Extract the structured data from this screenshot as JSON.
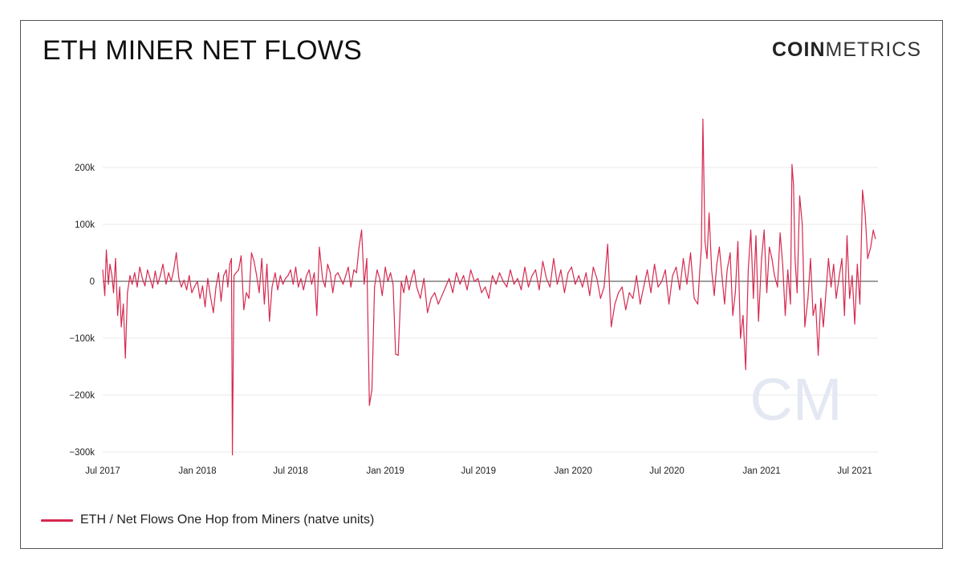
{
  "header": {
    "title": "ETH MINER NET FLOWS",
    "brand_bold": "COIN",
    "brand_light": "METRICS"
  },
  "watermark": "CM",
  "legend": {
    "label": "ETH / Net Flows One Hop from Miners (natve units)"
  },
  "colors": {
    "series": "#d6294f",
    "grid": "#e8e8e8",
    "zero": "#666666",
    "watermark": "#e3e8f2"
  },
  "chart_data": {
    "type": "line",
    "title": "ETH MINER NET FLOWS",
    "xlabel": "",
    "ylabel": "",
    "grid": true,
    "legend_position": "bottom-left",
    "xlim": [
      "2017-07-01",
      "2021-08-15"
    ],
    "ylim": [
      -300000,
      200000
    ],
    "y_ticks": [
      {
        "value": 200000,
        "label": "200k"
      },
      {
        "value": 100000,
        "label": "100k"
      },
      {
        "value": 0,
        "label": "0"
      },
      {
        "value": -100000,
        "label": "−100k"
      },
      {
        "value": -200000,
        "label": "−200k"
      },
      {
        "value": -300000,
        "label": "−300k"
      }
    ],
    "x_ticks": [
      {
        "value": "2017-07-01",
        "label": "Jul 2017"
      },
      {
        "value": "2018-01-01",
        "label": "Jan 2018"
      },
      {
        "value": "2018-07-01",
        "label": "Jul 2018"
      },
      {
        "value": "2019-01-01",
        "label": "Jan 2019"
      },
      {
        "value": "2019-07-01",
        "label": "Jul 2019"
      },
      {
        "value": "2020-01-01",
        "label": "Jan 2020"
      },
      {
        "value": "2020-07-01",
        "label": "Jul 2020"
      },
      {
        "value": "2021-01-01",
        "label": "Jan 2021"
      },
      {
        "value": "2021-07-01",
        "label": "Jul 2021"
      }
    ],
    "series": [
      {
        "name": "ETH / Net Flows One Hop from Miners (natve units)",
        "x": [
          "2017-07-01",
          "2017-07-05",
          "2017-07-08",
          "2017-07-12",
          "2017-07-15",
          "2017-07-19",
          "2017-07-22",
          "2017-07-26",
          "2017-07-30",
          "2017-08-03",
          "2017-08-06",
          "2017-08-10",
          "2017-08-14",
          "2017-08-18",
          "2017-08-23",
          "2017-08-27",
          "2017-09-01",
          "2017-09-06",
          "2017-09-11",
          "2017-09-16",
          "2017-09-21",
          "2017-09-26",
          "2017-10-01",
          "2017-10-06",
          "2017-10-11",
          "2017-10-16",
          "2017-10-21",
          "2017-10-26",
          "2017-11-01",
          "2017-11-06",
          "2017-11-11",
          "2017-11-16",
          "2017-11-21",
          "2017-11-26",
          "2017-12-01",
          "2017-12-06",
          "2017-12-11",
          "2017-12-16",
          "2017-12-21",
          "2017-12-26",
          "2018-01-01",
          "2018-01-06",
          "2018-01-11",
          "2018-01-16",
          "2018-01-21",
          "2018-01-26",
          "2018-02-01",
          "2018-02-06",
          "2018-02-11",
          "2018-02-16",
          "2018-02-21",
          "2018-02-26",
          "2018-03-01",
          "2018-03-05",
          "2018-03-08",
          "2018-03-10",
          "2018-03-13",
          "2018-03-17",
          "2018-03-22",
          "2018-03-27",
          "2018-04-01",
          "2018-04-06",
          "2018-04-11",
          "2018-04-16",
          "2018-04-21",
          "2018-04-26",
          "2018-05-01",
          "2018-05-06",
          "2018-05-11",
          "2018-05-16",
          "2018-05-21",
          "2018-05-26",
          "2018-06-01",
          "2018-06-06",
          "2018-06-11",
          "2018-06-16",
          "2018-06-21",
          "2018-06-26",
          "2018-07-01",
          "2018-07-06",
          "2018-07-11",
          "2018-07-16",
          "2018-07-21",
          "2018-07-26",
          "2018-08-01",
          "2018-08-06",
          "2018-08-11",
          "2018-08-16",
          "2018-08-21",
          "2018-08-26",
          "2018-09-01",
          "2018-09-06",
          "2018-09-11",
          "2018-09-16",
          "2018-09-21",
          "2018-09-26",
          "2018-10-01",
          "2018-10-06",
          "2018-10-11",
          "2018-10-16",
          "2018-10-21",
          "2018-10-26",
          "2018-11-01",
          "2018-11-06",
          "2018-11-11",
          "2018-11-16",
          "2018-11-21",
          "2018-11-26",
          "2018-12-01",
          "2018-12-06",
          "2018-12-11",
          "2018-12-16",
          "2018-12-21",
          "2018-12-26",
          "2019-01-01",
          "2019-01-06",
          "2019-01-11",
          "2019-01-16",
          "2019-01-21",
          "2019-01-26",
          "2019-02-01",
          "2019-02-06",
          "2019-02-11",
          "2019-02-16",
          "2019-02-21",
          "2019-02-26",
          "2019-03-03",
          "2019-03-10",
          "2019-03-17",
          "2019-03-24",
          "2019-03-31",
          "2019-04-07",
          "2019-04-14",
          "2019-04-21",
          "2019-04-28",
          "2019-05-05",
          "2019-05-12",
          "2019-05-19",
          "2019-05-26",
          "2019-06-02",
          "2019-06-09",
          "2019-06-16",
          "2019-06-23",
          "2019-06-30",
          "2019-07-07",
          "2019-07-14",
          "2019-07-21",
          "2019-07-28",
          "2019-08-04",
          "2019-08-11",
          "2019-08-18",
          "2019-08-25",
          "2019-09-01",
          "2019-09-08",
          "2019-09-15",
          "2019-09-22",
          "2019-09-29",
          "2019-10-06",
          "2019-10-13",
          "2019-10-20",
          "2019-10-27",
          "2019-11-03",
          "2019-11-10",
          "2019-11-17",
          "2019-11-24",
          "2019-12-01",
          "2019-12-08",
          "2019-12-15",
          "2019-12-22",
          "2019-12-29",
          "2020-01-05",
          "2020-01-12",
          "2020-01-19",
          "2020-01-26",
          "2020-02-02",
          "2020-02-09",
          "2020-02-16",
          "2020-02-23",
          "2020-03-01",
          "2020-03-08",
          "2020-03-15",
          "2020-03-22",
          "2020-03-29",
          "2020-04-05",
          "2020-04-12",
          "2020-04-19",
          "2020-04-26",
          "2020-05-03",
          "2020-05-10",
          "2020-05-17",
          "2020-05-24",
          "2020-05-31",
          "2020-06-07",
          "2020-06-14",
          "2020-06-21",
          "2020-06-28",
          "2020-07-05",
          "2020-07-12",
          "2020-07-19",
          "2020-07-26",
          "2020-08-02",
          "2020-08-09",
          "2020-08-16",
          "2020-08-23",
          "2020-08-30",
          "2020-09-03",
          "2020-09-06",
          "2020-09-09",
          "2020-09-13",
          "2020-09-17",
          "2020-09-21",
          "2020-09-26",
          "2020-10-01",
          "2020-10-06",
          "2020-10-11",
          "2020-10-16",
          "2020-10-21",
          "2020-10-26",
          "2020-11-01",
          "2020-11-06",
          "2020-11-11",
          "2020-11-16",
          "2020-11-21",
          "2020-11-26",
          "2020-12-01",
          "2020-12-06",
          "2020-12-11",
          "2020-12-16",
          "2020-12-21",
          "2020-12-26",
          "2021-01-01",
          "2021-01-06",
          "2021-01-11",
          "2021-01-16",
          "2021-01-21",
          "2021-01-26",
          "2021-02-01",
          "2021-02-06",
          "2021-02-11",
          "2021-02-16",
          "2021-02-21",
          "2021-02-26",
          "2021-03-01",
          "2021-03-04",
          "2021-03-07",
          "2021-03-11",
          "2021-03-16",
          "2021-03-21",
          "2021-03-26",
          "2021-04-01",
          "2021-04-06",
          "2021-04-11",
          "2021-04-16",
          "2021-04-21",
          "2021-04-26",
          "2021-05-01",
          "2021-05-06",
          "2021-05-11",
          "2021-05-16",
          "2021-05-21",
          "2021-05-26",
          "2021-06-01",
          "2021-06-06",
          "2021-06-11",
          "2021-06-16",
          "2021-06-21",
          "2021-06-26",
          "2021-07-01",
          "2021-07-06",
          "2021-07-11",
          "2021-07-16",
          "2021-07-21",
          "2021-07-26",
          "2021-08-01",
          "2021-08-06",
          "2021-08-10"
        ],
        "y": [
          20000,
          -25000,
          55000,
          -5000,
          30000,
          10000,
          -20000,
          40000,
          -60000,
          -10000,
          -80000,
          -40000,
          -135000,
          -20000,
          10000,
          -5000,
          15000,
          -10000,
          25000,
          5000,
          -8000,
          20000,
          5000,
          -12000,
          18000,
          -5000,
          10000,
          30000,
          -5000,
          15000,
          0,
          20000,
          50000,
          5000,
          -10000,
          2000,
          -15000,
          10000,
          -20000,
          -10000,
          0,
          -30000,
          -8000,
          -45000,
          5000,
          -25000,
          -55000,
          -10000,
          15000,
          -35000,
          10000,
          20000,
          -10000,
          30000,
          40000,
          -305000,
          10000,
          15000,
          20000,
          45000,
          -50000,
          -20000,
          -30000,
          50000,
          35000,
          10000,
          -20000,
          40000,
          -40000,
          30000,
          -70000,
          -10000,
          15000,
          -15000,
          10000,
          -5000,
          5000,
          10000,
          20000,
          -5000,
          25000,
          -10000,
          5000,
          -15000,
          10000,
          20000,
          -5000,
          15000,
          -60000,
          60000,
          5000,
          -10000,
          30000,
          15000,
          -20000,
          10000,
          15000,
          5000,
          -5000,
          10000,
          25000,
          -10000,
          20000,
          15000,
          60000,
          90000,
          -5000,
          40000,
          -218000,
          -190000,
          -10000,
          20000,
          5000,
          -25000,
          25000,
          0,
          15000,
          -5000,
          -128000,
          -130000,
          0,
          -20000,
          10000,
          -15000,
          5000,
          20000,
          -10000,
          -30000,
          5000,
          -55000,
          -30000,
          -20000,
          -40000,
          -25000,
          -10000,
          5000,
          -20000,
          15000,
          -5000,
          10000,
          -15000,
          20000,
          0,
          5000,
          -20000,
          -10000,
          -30000,
          10000,
          -5000,
          15000,
          0,
          -10000,
          20000,
          -5000,
          5000,
          -15000,
          25000,
          -10000,
          10000,
          20000,
          -15000,
          35000,
          5000,
          -10000,
          40000,
          -5000,
          20000,
          -20000,
          15000,
          25000,
          -5000,
          10000,
          -10000,
          15000,
          -25000,
          25000,
          5000,
          -30000,
          -10000,
          65000,
          -80000,
          -40000,
          -20000,
          -10000,
          -50000,
          -20000,
          -30000,
          10000,
          -40000,
          -10000,
          20000,
          -20000,
          30000,
          -10000,
          0,
          20000,
          -40000,
          10000,
          25000,
          -15000,
          40000,
          -5000,
          50000,
          -30000,
          -40000,
          20000,
          60000,
          285000,
          70000,
          40000,
          120000,
          20000,
          -25000,
          30000,
          60000,
          10000,
          -40000,
          20000,
          50000,
          -60000,
          -20000,
          70000,
          -100000,
          -60000,
          -155000,
          20000,
          90000,
          -30000,
          80000,
          -70000,
          40000,
          90000,
          -20000,
          60000,
          40000,
          10000,
          -10000,
          85000,
          30000,
          -60000,
          20000,
          -40000,
          205000,
          170000,
          40000,
          -20000,
          150000,
          100000,
          -80000,
          -30000,
          40000,
          -60000,
          -40000,
          -130000,
          -30000,
          -80000,
          -20000,
          40000,
          -10000,
          30000,
          -30000,
          10000,
          40000,
          -60000,
          80000,
          -30000,
          10000,
          -75000,
          30000,
          -40000,
          160000,
          120000,
          40000,
          60000,
          90000,
          75000
        ]
      }
    ]
  }
}
